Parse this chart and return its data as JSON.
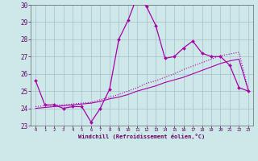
{
  "xlabel": "Windchill (Refroidissement éolien,°C)",
  "hours": [
    0,
    1,
    2,
    3,
    4,
    5,
    6,
    7,
    8,
    9,
    10,
    11,
    12,
    13,
    14,
    15,
    16,
    17,
    18,
    19,
    20,
    21,
    22,
    23
  ],
  "line1": [
    25.6,
    24.2,
    24.2,
    24.0,
    24.1,
    24.1,
    23.2,
    24.0,
    25.1,
    28.0,
    29.1,
    30.5,
    29.9,
    28.8,
    26.9,
    27.0,
    27.5,
    27.9,
    27.2,
    27.0,
    27.0,
    26.5,
    25.2,
    25.0
  ],
  "line2": [
    24.0,
    24.05,
    24.1,
    24.15,
    24.2,
    24.25,
    24.3,
    24.4,
    24.55,
    24.65,
    24.8,
    25.0,
    25.15,
    25.3,
    25.5,
    25.65,
    25.8,
    26.0,
    26.2,
    26.4,
    26.6,
    26.75,
    26.85,
    25.05
  ],
  "line3": [
    24.1,
    24.15,
    24.2,
    24.2,
    24.25,
    24.3,
    24.35,
    24.5,
    24.65,
    24.8,
    25.0,
    25.2,
    25.45,
    25.6,
    25.8,
    26.0,
    26.25,
    26.45,
    26.65,
    26.85,
    27.05,
    27.15,
    27.25,
    25.1
  ],
  "ylim": [
    23,
    30
  ],
  "yticks": [
    23,
    24,
    25,
    26,
    27,
    28,
    29,
    30
  ],
  "xlim": [
    -0.5,
    23.5
  ],
  "bg_color": "#cce8e8",
  "line_color": "#aa00aa",
  "grid_color": "#aabccc",
  "text_color": "#660066",
  "fig_bg": "#cce8e8"
}
